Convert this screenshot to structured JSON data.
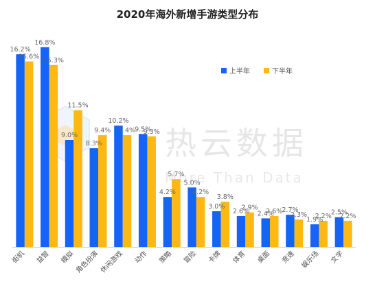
{
  "chart_data": {
    "type": "bar",
    "title": "2020年海外新增手游类型分布",
    "categories": [
      "街机",
      "益智",
      "模拟",
      "角色扮演",
      "休闲游戏",
      "动作",
      "策略",
      "冒险",
      "卡牌",
      "体育",
      "桌面",
      "竞速",
      "娱乐场",
      "文字"
    ],
    "series": [
      {
        "name": "上半年",
        "color": "#1464f6",
        "values": [
          16.2,
          16.8,
          9.0,
          8.3,
          10.2,
          9.5,
          4.2,
          5.0,
          3.0,
          2.6,
          2.4,
          2.7,
          1.9,
          2.5
        ]
      },
      {
        "name": "下半年",
        "color": "#fdb813",
        "values": [
          15.6,
          15.3,
          11.5,
          9.4,
          9.4,
          9.3,
          5.7,
          4.2,
          3.8,
          2.9,
          2.6,
          2.3,
          2.2,
          2.2
        ]
      }
    ],
    "value_suffix": "%",
    "ylim": [
      0,
      18
    ],
    "grid": false,
    "legend_position": "top-right"
  },
  "watermark": {
    "text": "热云数据",
    "subtext": "More Than Data"
  }
}
